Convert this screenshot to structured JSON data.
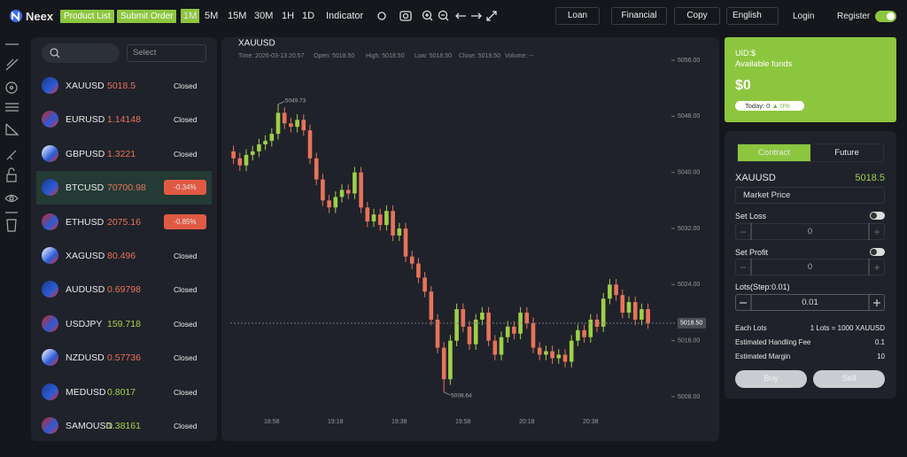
{
  "header": {
    "logo": "Neex",
    "product_list": "Product List",
    "submit_order": "Submit Order",
    "intervals": [
      "1M",
      "5M",
      "15M",
      "30M",
      "1H",
      "1D"
    ],
    "indicator": "Indicator",
    "loan": "Loan",
    "financial": "Financial",
    "copy": "Copy",
    "language": "English",
    "login": "Login",
    "register": "Register"
  },
  "search": {
    "select": "Select"
  },
  "products": [
    {
      "symbol": "XAUUSD",
      "price": "5018.5",
      "price_color": "#e8735a",
      "status": "Closed"
    },
    {
      "symbol": "EURUSD",
      "price": "1.14148",
      "price_color": "#e8735a",
      "status": "Closed"
    },
    {
      "symbol": "GBPUSD",
      "price": "1.3221",
      "price_color": "#e8735a",
      "status": "Closed"
    },
    {
      "symbol": "BTCUSD",
      "price": "70700.98",
      "price_color": "#e8735a",
      "status": "-0.34%",
      "status_color": "#e05a43"
    },
    {
      "symbol": "ETHUSD",
      "price": "2075.16",
      "price_color": "#e8735a",
      "status": "-0.85%",
      "status_color": "#e05a43"
    },
    {
      "symbol": "XAGUSD",
      "price": "80.496",
      "price_color": "#e8735a",
      "status": "Closed"
    },
    {
      "symbol": "AUDUSD",
      "price": "0.69798",
      "price_color": "#e8735a",
      "status": "Closed"
    },
    {
      "symbol": "USDJPY",
      "price": "159.718",
      "price_color": "#a6d14a",
      "status": "Closed"
    },
    {
      "symbol": "NZDUSD",
      "price": "0.57736",
      "price_color": "#e8735a",
      "status": "Closed"
    },
    {
      "symbol": "MEDUSD",
      "price": "0.8017",
      "price_color": "#a6d14a",
      "status": "Closed"
    },
    {
      "symbol": "SAMOUSD",
      "price": "1.38161",
      "price_color": "#a6d14a",
      "status": "Closed"
    }
  ],
  "chart_data": {
    "type": "candlestick",
    "symbol": "XAUUSD",
    "info": [
      "Time: 2026-03-13 20:57",
      "Open: 5018.50",
      "High: 5018.50",
      "Low: 5018.50",
      "Close: 5018.50",
      "Volume: --"
    ],
    "categories": [
      null,
      null,
      null,
      null,
      null,
      null,
      "18:58",
      null,
      null,
      null,
      null,
      null,
      null,
      null,
      null,
      null,
      "19:18",
      null,
      null,
      null,
      null,
      null,
      null,
      null,
      null,
      null,
      "19:38",
      null,
      null,
      null,
      null,
      null,
      null,
      null,
      null,
      null,
      "19:58",
      null,
      null,
      null,
      null,
      null,
      null,
      null,
      null,
      null,
      "20:18",
      null,
      null,
      null,
      null,
      null,
      null,
      null,
      null,
      null,
      "20:38",
      null,
      null,
      null,
      null,
      null,
      null,
      null,
      null,
      null
    ],
    "open": [
      5043.0,
      5042.0,
      5041.0,
      5042.5,
      5043.0,
      5044.0,
      5044.5,
      5045.5,
      5048.5,
      5047.0,
      5046.5,
      5047.5,
      5046.0,
      5042.0,
      5039.0,
      5036.0,
      5035.0,
      5036.5,
      5037.5,
      5037.0,
      5040.0,
      5035.0,
      5033.0,
      5034.0,
      5032.5,
      5034.5,
      5031.0,
      5032.0,
      5028.0,
      5027.0,
      5025.0,
      5023.0,
      5019.0,
      5015.0,
      5010.5,
      5016.0,
      5020.5,
      5018.0,
      5015.5,
      5019.0,
      5020.0,
      5016.0,
      5014.0,
      5016.5,
      5018.0,
      5017.0,
      5020.0,
      5018.5,
      5015.0,
      5014.0,
      5014.5,
      5013.5,
      5014.0,
      5013.0,
      5016.0,
      5017.5,
      5016.5,
      5019.0,
      5018.0,
      5022.0,
      5024.0,
      5022.5,
      5020.0,
      5021.5,
      5019.0,
      5020.5
    ],
    "high": [
      5043.8,
      5042.8,
      5043.3,
      5043.8,
      5044.8,
      5045.3,
      5046.3,
      5049.73,
      5049.3,
      5047.8,
      5048.3,
      5048.3,
      5046.8,
      5042.8,
      5039.8,
      5036.8,
      5037.3,
      5038.3,
      5038.3,
      5040.8,
      5040.8,
      5035.8,
      5034.8,
      5034.8,
      5035.3,
      5035.3,
      5032.8,
      5032.8,
      5028.8,
      5027.8,
      5025.8,
      5023.8,
      5019.8,
      5015.8,
      5016.8,
      5021.3,
      5021.3,
      5018.8,
      5019.8,
      5020.8,
      5020.8,
      5016.8,
      5017.3,
      5018.8,
      5018.8,
      5020.8,
      5020.8,
      5019.3,
      5015.8,
      5015.3,
      5015.3,
      5014.8,
      5014.8,
      5016.8,
      5018.3,
      5018.3,
      5019.8,
      5019.8,
      5022.8,
      5024.8,
      5024.8,
      5023.3,
      5022.3,
      5022.3,
      5021.3,
      5021.3
    ],
    "low": [
      5041.2,
      5040.2,
      5040.2,
      5041.7,
      5042.2,
      5043.2,
      5043.7,
      5044.7,
      5046.2,
      5045.7,
      5045.7,
      5045.2,
      5041.2,
      5038.2,
      5035.2,
      5034.2,
      5034.2,
      5035.7,
      5036.2,
      5036.2,
      5034.2,
      5032.2,
      5032.2,
      5031.7,
      5031.7,
      5030.2,
      5030.2,
      5027.2,
      5026.2,
      5024.2,
      5022.2,
      5018.2,
      5014.2,
      5008.64,
      5009.7,
      5015.2,
      5017.2,
      5014.7,
      5014.7,
      5018.2,
      5015.2,
      5013.2,
      5013.2,
      5015.7,
      5016.2,
      5016.2,
      5017.7,
      5014.2,
      5013.2,
      5013.2,
      5012.7,
      5012.7,
      5012.2,
      5012.2,
      5015.2,
      5015.7,
      5015.7,
      5017.2,
      5017.2,
      5021.2,
      5021.7,
      5019.2,
      5019.2,
      5018.2,
      5018.2,
      5017.7
    ],
    "close": [
      5042.0,
      5041.0,
      5042.5,
      5043.0,
      5044.0,
      5044.5,
      5045.5,
      5048.5,
      5047.0,
      5046.5,
      5047.5,
      5046.0,
      5042.0,
      5039.0,
      5036.0,
      5035.0,
      5036.5,
      5037.5,
      5037.0,
      5040.0,
      5035.0,
      5033.0,
      5034.0,
      5032.5,
      5034.5,
      5031.0,
      5032.0,
      5028.0,
      5027.0,
      5025.0,
      5023.0,
      5019.0,
      5015.0,
      5010.5,
      5016.0,
      5020.5,
      5018.0,
      5015.5,
      5019.0,
      5020.0,
      5016.0,
      5014.0,
      5016.5,
      5018.0,
      5017.0,
      5020.0,
      5018.5,
      5015.0,
      5014.0,
      5014.5,
      5013.5,
      5014.0,
      5013.0,
      5016.0,
      5017.5,
      5016.5,
      5019.0,
      5018.0,
      5022.0,
      5024.0,
      5022.5,
      5020.0,
      5021.5,
      5019.0,
      5020.5,
      5018.5
    ],
    "up_color": "#9fcf48",
    "down_color": "#e8735a",
    "ylim": [
      5005,
      5057
    ],
    "yticks": [
      {
        "value": 5008,
        "label": "5008.00"
      },
      {
        "value": 5016,
        "label": "5016.00"
      },
      {
        "value": 5024,
        "label": "5024.00"
      },
      {
        "value": 5032,
        "label": "5032.00"
      },
      {
        "value": 5040,
        "label": "5040.00"
      },
      {
        "value": 5048,
        "label": "5048.00"
      },
      {
        "value": 5056,
        "label": "5056.00"
      }
    ],
    "high_label": 5049.73,
    "low_label": 5008.64,
    "last_price": {
      "value": 5018.5,
      "label": "5018.50"
    }
  },
  "account": {
    "uid": "UID:$",
    "funds_label": "Available funds",
    "funds": "$0",
    "today": "Today: 0",
    "change": "▲ 0%"
  },
  "trade": {
    "tabs": [
      "Contract",
      "Future"
    ],
    "symbol": "XAUUSD",
    "price": "5018.5",
    "order_type": "Market Price",
    "set_loss": "Set Loss",
    "loss_value": "0",
    "set_profit": "Set Profit",
    "profit_value": "0",
    "lots_label": "Lots(Step:0.01)",
    "lots": "0.01",
    "details": [
      [
        "Each Lots",
        "1 Lots = 1000 XAUUSD"
      ],
      [
        "Estimated Handling Fee",
        "0.1"
      ],
      [
        "Estimated Margin",
        "10"
      ]
    ],
    "buy": "Buy",
    "sell": "Sell"
  }
}
